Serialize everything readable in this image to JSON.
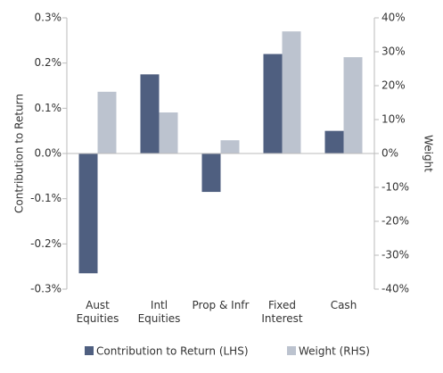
{
  "chart_data": {
    "type": "bar",
    "categories": [
      "Aust\nEquities",
      "Intl\nEquities",
      "Prop & Infr",
      "Fixed\nInterest",
      "Cash"
    ],
    "series": [
      {
        "name": "Contribution to Return (LHS)",
        "color": "#4f5f80",
        "values": [
          -0.265,
          0.175,
          -0.085,
          0.22,
          0.05
        ]
      },
      {
        "name": "Weight (RHS)",
        "color": "#bcc3cf",
        "axis": "y2",
        "values": [
          18.2,
          12.1,
          3.9,
          36,
          28.4
        ]
      }
    ],
    "y_label": "Contribution to Return",
    "y2_label": "Weight",
    "ylim": [
      -0.3,
      0.3
    ],
    "yticks": [
      {
        "value": 0.3,
        "label": "0.3%"
      },
      {
        "value": 0.2,
        "label": "0.2%"
      },
      {
        "value": 0.1,
        "label": "0.1%"
      },
      {
        "value": 0,
        "label": "0.0%"
      },
      {
        "value": -0.1,
        "label": "-0.1%"
      },
      {
        "value": -0.2,
        "label": "-0.2%"
      },
      {
        "value": -0.3,
        "label": "-0.3%"
      }
    ],
    "y2lim": [
      -40,
      40
    ],
    "y2ticks": [
      {
        "value": 40,
        "label": "40%"
      },
      {
        "value": 30,
        "label": "30%"
      },
      {
        "value": 20,
        "label": "20%"
      },
      {
        "value": 10,
        "label": "10%"
      },
      {
        "value": 0,
        "label": "0%"
      },
      {
        "value": -10,
        "label": "-10%"
      },
      {
        "value": -20,
        "label": "-20%"
      },
      {
        "value": -30,
        "label": "-30%"
      },
      {
        "value": -40,
        "label": "-40%"
      }
    ],
    "grid": false,
    "legend": "bottom"
  }
}
